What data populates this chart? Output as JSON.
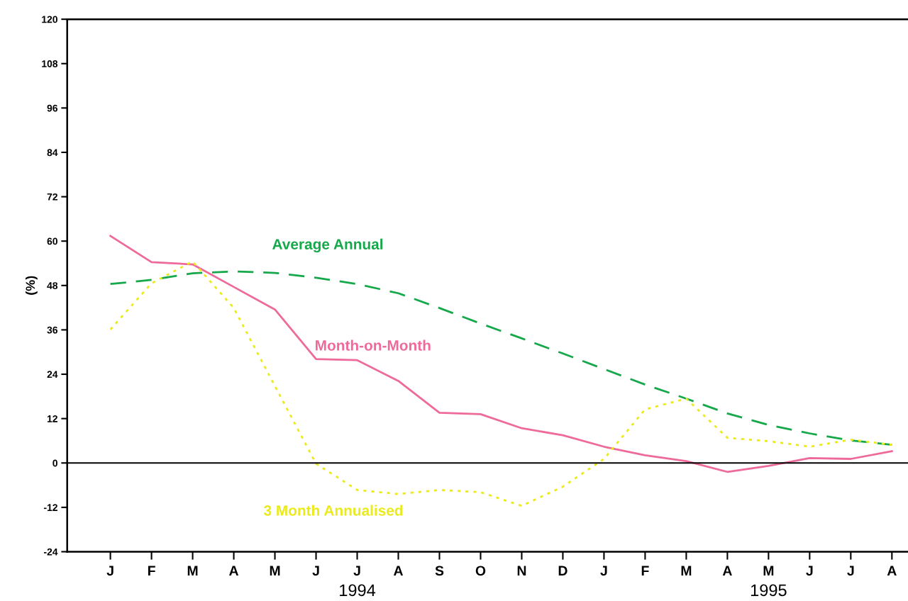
{
  "chart_data": {
    "type": "line",
    "ylabel": "(%)",
    "categories": [
      "J",
      "F",
      "M",
      "A",
      "M",
      "J",
      "J",
      "A",
      "S",
      "O",
      "N",
      "D",
      "J",
      "F",
      "M",
      "A",
      "M",
      "J",
      "J",
      "A"
    ],
    "ylim": [
      -24,
      120
    ],
    "yticks": [
      -24,
      -12,
      0,
      12,
      24,
      36,
      48,
      60,
      72,
      84,
      96,
      108,
      120
    ],
    "grid": false,
    "legend": false,
    "marker": "none",
    "series": [
      {
        "name": "Average Annual",
        "color": "#16a84a",
        "line_style": "dashed",
        "values": [
          48.4,
          49.5,
          51.3,
          51.8,
          51.4,
          50.1,
          48.4,
          45.9,
          41.9,
          37.7,
          33.7,
          29.6,
          25.4,
          21.2,
          17.4,
          13.4,
          10.3,
          8.0,
          6.1,
          4.9
        ]
      },
      {
        "name": "Month-on-Month",
        "color": "#ee6a9a",
        "line_style": "solid",
        "values": [
          61.4,
          54.3,
          53.7,
          47.6,
          41.5,
          28.1,
          27.8,
          22.2,
          13.6,
          13.2,
          9.4,
          7.5,
          4.4,
          2.1,
          0.5,
          -2.4,
          -0.8,
          1.3,
          1.1,
          3.2
        ]
      },
      {
        "name": "3 Month Annualised",
        "color": "#eaea1c",
        "line_style": "dotted",
        "values": [
          36.1,
          48.6,
          54.5,
          41.9,
          20.8,
          -0.2,
          -7.3,
          -8.4,
          -7.3,
          -7.9,
          -11.6,
          -6.4,
          1.1,
          14.5,
          17.4,
          6.8,
          5.9,
          4.4,
          6.3,
          4.9
        ]
      }
    ],
    "ref_lines": [
      {
        "axis": "y",
        "value": 0,
        "color": "#000000"
      }
    ],
    "annotations": [
      "1994",
      "1995"
    ]
  }
}
